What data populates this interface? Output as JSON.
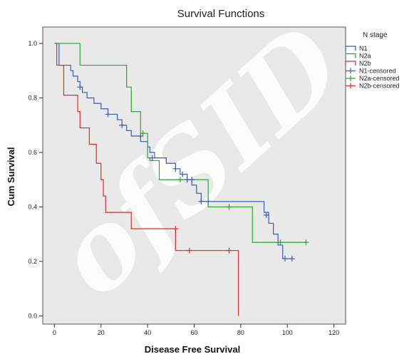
{
  "chart_data": {
    "type": "line",
    "step": true,
    "title": "Survival Functions",
    "xlabel": "Disease Free Survival",
    "ylabel": "Cum Survival",
    "xlim": [
      -5,
      125
    ],
    "ylim": [
      -0.03,
      1.06
    ],
    "xticks": [
      0,
      20,
      40,
      60,
      80,
      100,
      120
    ],
    "yticks": [
      0.0,
      0.2,
      0.4,
      0.6,
      0.8,
      1.0
    ],
    "ytick_labels": [
      "0.0",
      "0.2",
      "0.4",
      "0.6",
      "0.8",
      "1.0"
    ],
    "grid": false,
    "background": "#e9e9e9",
    "legend": {
      "title": "N stage",
      "position": "right",
      "entries": [
        "N1",
        "N2a",
        "N2b",
        "N1-censored",
        "N2a-censored",
        "N2b-censored"
      ]
    },
    "series": [
      {
        "name": "N1",
        "color": "#3b5bbd",
        "steps": [
          [
            0,
            1.0
          ],
          [
            2,
            0.92
          ],
          [
            7,
            0.9
          ],
          [
            8,
            0.88
          ],
          [
            10,
            0.86
          ],
          [
            11,
            0.84
          ],
          [
            12,
            0.82
          ],
          [
            14,
            0.8
          ],
          [
            17,
            0.78
          ],
          [
            20,
            0.76
          ],
          [
            23,
            0.74
          ],
          [
            27,
            0.72
          ],
          [
            29,
            0.7
          ],
          [
            31,
            0.68
          ],
          [
            33,
            0.66
          ],
          [
            37,
            0.64
          ],
          [
            40,
            0.62
          ],
          [
            41,
            0.6
          ],
          [
            43,
            0.58
          ],
          [
            48,
            0.56
          ],
          [
            52,
            0.54
          ],
          [
            54,
            0.52
          ],
          [
            57,
            0.5
          ],
          [
            59,
            0.48
          ],
          [
            61,
            0.45
          ],
          [
            63,
            0.42
          ],
          [
            90,
            0.38
          ],
          [
            92,
            0.34
          ],
          [
            94,
            0.3
          ],
          [
            96,
            0.26
          ],
          [
            98,
            0.21
          ]
        ],
        "end_x": 102,
        "censored": [
          [
            11,
            0.84
          ],
          [
            23,
            0.74
          ],
          [
            29,
            0.7
          ],
          [
            37,
            0.66
          ],
          [
            42,
            0.58
          ],
          [
            52,
            0.54
          ],
          [
            55,
            0.52
          ],
          [
            57,
            0.5
          ],
          [
            59,
            0.5
          ],
          [
            63,
            0.42
          ],
          [
            66,
            0.42
          ],
          [
            91,
            0.37
          ],
          [
            99,
            0.21
          ],
          [
            102,
            0.21
          ]
        ]
      },
      {
        "name": "N2a",
        "color": "#2da832",
        "steps": [
          [
            0,
            1.0
          ],
          [
            11,
            0.92
          ],
          [
            31,
            0.84
          ],
          [
            33,
            0.75
          ],
          [
            37,
            0.67
          ],
          [
            40,
            0.58
          ],
          [
            41,
            0.57
          ],
          [
            45,
            0.5
          ],
          [
            66,
            0.4
          ],
          [
            85,
            0.27
          ]
        ],
        "end_x": 108,
        "censored": [
          [
            38,
            0.67
          ],
          [
            54,
            0.5
          ],
          [
            75,
            0.4
          ],
          [
            97,
            0.27
          ],
          [
            108,
            0.27
          ]
        ]
      },
      {
        "name": "N2b",
        "color": "#e02b2b",
        "steps": [
          [
            0,
            1.0
          ],
          [
            1,
            0.92
          ],
          [
            4,
            0.81
          ],
          [
            10,
            0.75
          ],
          [
            11,
            0.69
          ],
          [
            15,
            0.63
          ],
          [
            18,
            0.56
          ],
          [
            20,
            0.5
          ],
          [
            21,
            0.44
          ],
          [
            22,
            0.38
          ],
          [
            33,
            0.32
          ],
          [
            52,
            0.24
          ],
          [
            79,
            0.0
          ]
        ],
        "end_x": 79,
        "censored": [
          [
            52,
            0.32
          ],
          [
            58,
            0.24
          ],
          [
            75,
            0.24
          ]
        ]
      }
    ]
  }
}
